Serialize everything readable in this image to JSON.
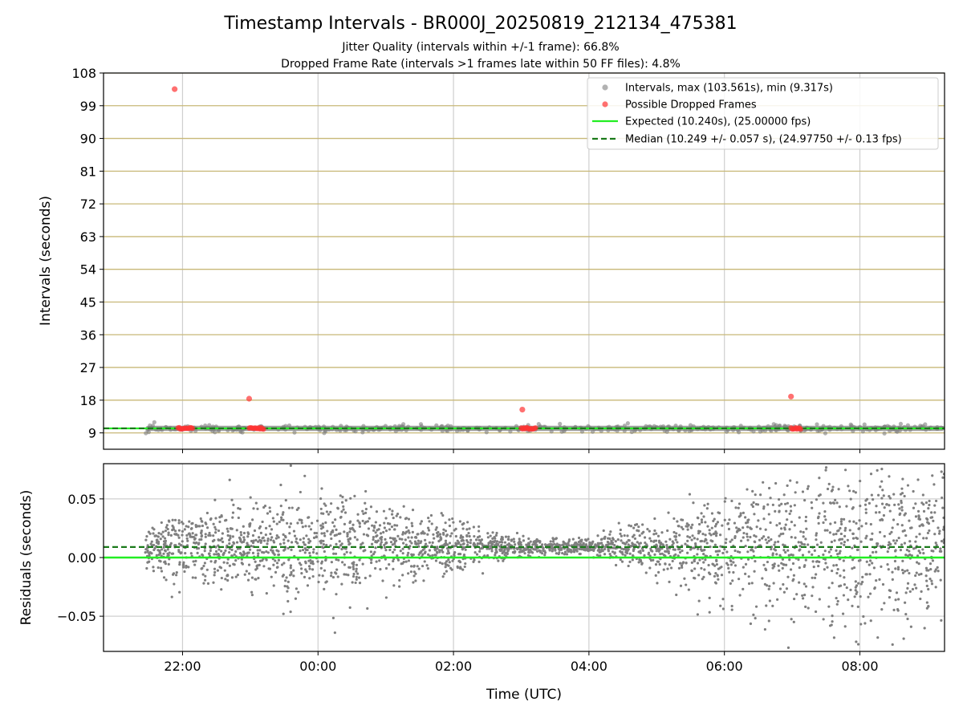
{
  "title": "Timestamp Intervals - BR000J_20250819_212134_475381",
  "subtitle_lines": [
    "Jitter Quality (intervals within +/-1 frame): 66.8%",
    "Dropped Frame Rate (intervals >1 frames late within 50 FF files): 4.8%"
  ],
  "colors": {
    "scatter": "#7f7f7f",
    "dropped": "#ff3333",
    "expected": "#22ee22",
    "median": "#1a7a1a",
    "hgrid_top": "#c8b878",
    "grid": "#cfcfcf"
  },
  "chart_data": [
    {
      "type": "scatter",
      "ylabel": "Intervals (seconds)",
      "xlim": [
        "2025-08-19 20:50",
        "2025-08-20 09:15"
      ],
      "ylim": [
        4.5,
        108
      ],
      "x_tick_labels": [
        "22:00",
        "00:00",
        "02:00",
        "04:00",
        "06:00",
        "08:00"
      ],
      "x_ticks": [
        "2025-08-19 22:00",
        "2025-08-20 00:00",
        "2025-08-20 02:00",
        "2025-08-20 04:00",
        "2025-08-20 06:00",
        "2025-08-20 08:00"
      ],
      "y_ticks": [
        9,
        18,
        27,
        36,
        45,
        54,
        63,
        72,
        81,
        90,
        99,
        108
      ],
      "grid": true,
      "legend_position": "top-right",
      "legend": [
        "Intervals, max (103.561s), min (9.317s)",
        "Possible Dropped Frames",
        "Expected (10.240s), (25.00000 fps)",
        "Median (10.249 +/- 0.057 s), (24.97750 +/- 0.13 fps)"
      ],
      "series": [
        {
          "name": "Intervals, max (103.561s), min (9.317s)",
          "kind": "dense_band",
          "x_range": [
            "2025-08-19 21:27",
            "2025-08-20 09:15"
          ],
          "y_center": 10.24,
          "y_spread": 0.5
        },
        {
          "name": "Possible Dropped Frames",
          "points": [
            {
              "x": "2025-08-19 21:53",
              "y": 103.561
            },
            {
              "x": "2025-08-19 22:59",
              "y": 18.4
            },
            {
              "x": "2025-08-20 03:01",
              "y": 15.4
            },
            {
              "x": "2025-08-20 06:59",
              "y": 19.0
            }
          ],
          "clusters": [
            {
              "x_start": "2025-08-19 21:56",
              "x_end": "2025-08-19 22:09",
              "y": 10.24
            },
            {
              "x_start": "2025-08-19 22:59",
              "x_end": "2025-08-19 23:12",
              "y": 10.24
            },
            {
              "x_start": "2025-08-20 03:00",
              "x_end": "2025-08-20 03:13",
              "y": 10.24
            },
            {
              "x_start": "2025-08-20 06:59",
              "x_end": "2025-08-20 07:08",
              "y": 10.24
            }
          ]
        },
        {
          "name": "Expected (10.240s), (25.00000 fps)",
          "kind": "hline",
          "y": 10.24
        },
        {
          "name": "Median (10.249 +/- 0.057 s), (24.97750 +/- 0.13 fps)",
          "kind": "hline",
          "y": 10.249
        }
      ]
    },
    {
      "type": "scatter",
      "xlabel": "Time (UTC)",
      "ylabel": "Residuals (seconds)",
      "xlim": [
        "2025-08-19 20:50",
        "2025-08-20 09:15"
      ],
      "ylim": [
        -0.08,
        0.08
      ],
      "y_tick_labels": [
        "0.05",
        "0.00",
        "−0.05"
      ],
      "y_ticks": [
        0.05,
        0.0,
        -0.05
      ],
      "grid": true,
      "series": [
        {
          "name": "Residuals",
          "kind": "scatter_cloud",
          "x_range": [
            "2025-08-19 21:27",
            "2025-08-20 09:15"
          ],
          "y_range": [
            -0.08,
            0.08
          ],
          "y_center": 0.009,
          "approx_count": 2800
        },
        {
          "name": "Expected",
          "kind": "hline",
          "y": 0.0
        },
        {
          "name": "Median",
          "kind": "hline",
          "y": 0.009
        }
      ]
    }
  ]
}
